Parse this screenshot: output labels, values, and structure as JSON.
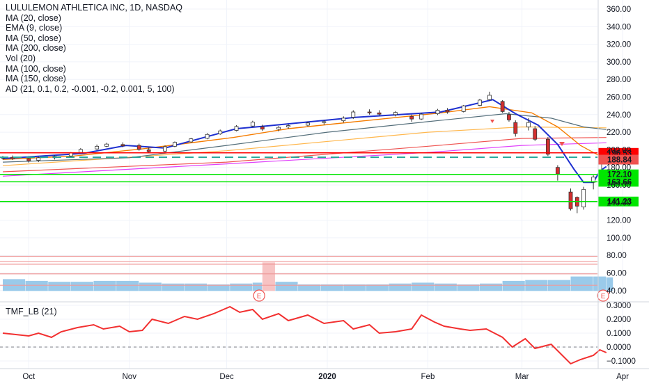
{
  "chart_data": {
    "type": "candlestick",
    "title": "LULULEMON ATHLETICA INC, 1D, NASDAQ",
    "indicators": [
      "MA (20, close)",
      "EMA (9, close)",
      "MA (50, close)",
      "MA (200, close)",
      "Vol (20)",
      "MA (100, close)",
      "MA (150, close)",
      "AD (21, 0.1, 0.2, -0.001, -0.2, 0.001, 5, 100)"
    ],
    "x_tick_labels": [
      "Oct",
      "Nov",
      "Dec",
      "2020",
      "Feb",
      "Mar",
      "Apr"
    ],
    "y_tick_labels": [
      "360.00",
      "340.00",
      "320.00",
      "300.00",
      "280.00",
      "260.00",
      "240.00",
      "220.00",
      "200.00",
      "180.00",
      "160.00",
      "140.00",
      "120.00",
      "100.00",
      "80.00",
      "60.00",
      "40.00"
    ],
    "ylim": [
      40,
      366
    ],
    "price_labels": [
      {
        "text": "196.53",
        "value": 196.53,
        "color": "#ff0000"
      },
      {
        "text": "188.84",
        "value": 188.84,
        "color": "#ef5350"
      },
      {
        "text": "172.10",
        "value": 172.1,
        "color": "#00e600"
      },
      {
        "text": "163.66",
        "value": 163.66,
        "color": "#00e600"
      },
      {
        "text": "141.23",
        "value": 141.23,
        "color": "#00e600"
      }
    ],
    "horizontal_levels": [
      {
        "value": 196.53,
        "color": "#ff0000",
        "style": "solid"
      },
      {
        "value": 191.5,
        "color": "#26a69a",
        "style": "dashed"
      },
      {
        "value": 172.1,
        "color": "#00e600",
        "style": "solid"
      },
      {
        "value": 163.66,
        "color": "#00e600",
        "style": "solid"
      },
      {
        "value": 141.23,
        "color": "#00e600",
        "style": "solid"
      }
    ],
    "oscillator_guides": [
      79.0,
      73.0,
      70.0,
      59.0,
      46.0
    ],
    "earnings_markers": [
      {
        "label": "E",
        "date": "2019-12-11"
      },
      {
        "label": "E",
        "date": "2020-03-26"
      }
    ],
    "candles": [
      {
        "d": "2019-09-23",
        "o": 190.5,
        "h": 193.0,
        "l": 189.0,
        "c": 191.5
      },
      {
        "d": "2019-09-26",
        "o": 191.5,
        "h": 193.5,
        "l": 188.5,
        "c": 190.0
      },
      {
        "d": "2019-10-01",
        "o": 190.0,
        "h": 192.5,
        "l": 185.5,
        "c": 187.5
      },
      {
        "d": "2019-10-04",
        "o": 188.0,
        "h": 192.0,
        "l": 186.0,
        "c": 191.0
      },
      {
        "d": "2019-10-09",
        "o": 191.0,
        "h": 194.0,
        "l": 189.0,
        "c": 192.5
      },
      {
        "d": "2019-10-14",
        "o": 193.0,
        "h": 197.5,
        "l": 192.0,
        "c": 196.5
      },
      {
        "d": "2019-10-17",
        "o": 197.0,
        "h": 202.0,
        "l": 196.0,
        "c": 200.5
      },
      {
        "d": "2019-10-22",
        "o": 201.0,
        "h": 206.0,
        "l": 200.0,
        "c": 204.0
      },
      {
        "d": "2019-10-25",
        "o": 204.0,
        "h": 208.0,
        "l": 203.0,
        "c": 206.5
      },
      {
        "d": "2019-10-30",
        "o": 206.0,
        "h": 208.5,
        "l": 203.0,
        "c": 204.5
      },
      {
        "d": "2019-11-04",
        "o": 205.0,
        "h": 207.0,
        "l": 199.0,
        "c": 200.5
      },
      {
        "d": "2019-11-07",
        "o": 200.0,
        "h": 202.5,
        "l": 196.0,
        "c": 198.0
      },
      {
        "d": "2019-11-12",
        "o": 198.5,
        "h": 205.0,
        "l": 197.0,
        "c": 203.5
      },
      {
        "d": "2019-11-15",
        "o": 204.0,
        "h": 209.5,
        "l": 203.0,
        "c": 208.5
      },
      {
        "d": "2019-11-20",
        "o": 209.0,
        "h": 213.5,
        "l": 208.0,
        "c": 212.5
      },
      {
        "d": "2019-11-25",
        "o": 213.0,
        "h": 219.0,
        "l": 212.0,
        "c": 217.5
      },
      {
        "d": "2019-11-29",
        "o": 218.0,
        "h": 223.0,
        "l": 217.0,
        "c": 221.5
      },
      {
        "d": "2019-12-04",
        "o": 222.0,
        "h": 228.0,
        "l": 221.0,
        "c": 226.5
      },
      {
        "d": "2019-12-09",
        "o": 227.0,
        "h": 233.0,
        "l": 226.0,
        "c": 231.5
      },
      {
        "d": "2019-12-12",
        "o": 226.0,
        "h": 228.5,
        "l": 221.5,
        "c": 223.5
      },
      {
        "d": "2019-12-17",
        "o": 223.5,
        "h": 227.0,
        "l": 221.0,
        "c": 225.5
      },
      {
        "d": "2019-12-20",
        "o": 226.0,
        "h": 229.0,
        "l": 224.0,
        "c": 227.5
      },
      {
        "d": "2019-12-26",
        "o": 228.0,
        "h": 232.0,
        "l": 226.5,
        "c": 230.5
      },
      {
        "d": "2019-12-31",
        "o": 231.0,
        "h": 234.0,
        "l": 228.5,
        "c": 232.0
      },
      {
        "d": "2020-01-06",
        "o": 233.0,
        "h": 238.0,
        "l": 231.0,
        "c": 236.0
      },
      {
        "d": "2020-01-09",
        "o": 237.0,
        "h": 245.0,
        "l": 235.0,
        "c": 243.0
      },
      {
        "d": "2020-01-14",
        "o": 243.0,
        "h": 246.0,
        "l": 240.0,
        "c": 242.0
      },
      {
        "d": "2020-01-17",
        "o": 242.0,
        "h": 245.0,
        "l": 239.0,
        "c": 240.5
      },
      {
        "d": "2020-01-22",
        "o": 240.0,
        "h": 244.0,
        "l": 238.0,
        "c": 242.5
      },
      {
        "d": "2020-01-27",
        "o": 238.0,
        "h": 240.0,
        "l": 232.0,
        "c": 235.0
      },
      {
        "d": "2020-01-30",
        "o": 235.0,
        "h": 242.0,
        "l": 234.0,
        "c": 240.5
      },
      {
        "d": "2020-02-04",
        "o": 241.0,
        "h": 246.5,
        "l": 239.5,
        "c": 245.0
      },
      {
        "d": "2020-02-07",
        "o": 245.0,
        "h": 247.5,
        "l": 241.0,
        "c": 243.0
      },
      {
        "d": "2020-02-12",
        "o": 243.5,
        "h": 251.0,
        "l": 242.5,
        "c": 250.0
      },
      {
        "d": "2020-02-17",
        "o": 250.5,
        "h": 258.0,
        "l": 249.5,
        "c": 256.5
      },
      {
        "d": "2020-02-20",
        "o": 257.0,
        "h": 266.0,
        "l": 255.5,
        "c": 262.0
      },
      {
        "d": "2020-02-24",
        "o": 255.0,
        "h": 256.5,
        "l": 242.0,
        "c": 243.5
      },
      {
        "d": "2020-02-26",
        "o": 240.0,
        "h": 243.0,
        "l": 232.0,
        "c": 234.0
      },
      {
        "d": "2020-02-28",
        "o": 231.0,
        "h": 233.5,
        "l": 215.0,
        "c": 218.5
      },
      {
        "d": "2020-03-03",
        "o": 226.0,
        "h": 236.0,
        "l": 222.0,
        "c": 231.0
      },
      {
        "d": "2020-03-05",
        "o": 224.0,
        "h": 227.0,
        "l": 210.0,
        "c": 212.0
      },
      {
        "d": "2020-03-09",
        "o": 212.0,
        "h": 214.5,
        "l": 193.0,
        "c": 195.0
      },
      {
        "d": "2020-03-12",
        "o": 180.0,
        "h": 182.5,
        "l": 165.0,
        "c": 172.5
      },
      {
        "d": "2020-03-16",
        "o": 152.0,
        "h": 156.0,
        "l": 131.0,
        "c": 133.0
      },
      {
        "d": "2020-03-18",
        "o": 146.0,
        "h": 147.0,
        "l": 128.0,
        "c": 136.0
      },
      {
        "d": "2020-03-20",
        "o": 135.0,
        "h": 158.0,
        "l": 132.0,
        "c": 155.0
      },
      {
        "d": "2020-03-23",
        "o": 163.0,
        "h": 171.0,
        "l": 155.0,
        "c": 169.0
      },
      {
        "d": "2020-03-25",
        "o": 176.0,
        "h": 196.5,
        "l": 174.0,
        "c": 194.5
      },
      {
        "d": "2020-03-27",
        "o": 196.0,
        "h": 202.0,
        "l": 186.0,
        "c": 188.84
      }
    ],
    "ma20": [
      [
        "2019-09-23",
        189
      ],
      [
        "2019-10-15",
        193
      ],
      [
        "2019-11-05",
        201
      ],
      [
        "2019-12-03",
        214
      ],
      [
        "2019-12-20",
        224
      ],
      [
        "2020-01-15",
        234
      ],
      [
        "2020-02-05",
        242
      ],
      [
        "2020-02-20",
        249
      ],
      [
        "2020-03-04",
        242
      ],
      [
        "2020-03-12",
        226
      ],
      [
        "2020-03-19",
        205
      ],
      [
        "2020-03-25",
        193
      ],
      [
        "2020-03-27",
        188
      ]
    ],
    "ema9": [
      [
        "2019-09-23",
        190
      ],
      [
        "2019-10-18",
        196
      ],
      [
        "2019-10-31",
        205
      ],
      [
        "2019-11-12",
        202
      ],
      [
        "2019-12-04",
        224
      ],
      [
        "2019-12-13",
        227
      ],
      [
        "2020-01-10",
        237
      ],
      [
        "2020-02-05",
        243
      ],
      [
        "2020-02-21",
        257
      ],
      [
        "2020-02-28",
        241
      ],
      [
        "2020-03-06",
        228
      ],
      [
        "2020-03-12",
        206
      ],
      [
        "2020-03-17",
        178
      ],
      [
        "2020-03-20",
        163
      ],
      [
        "2020-03-23",
        163
      ],
      [
        "2020-03-25",
        176
      ],
      [
        "2020-03-27",
        181
      ]
    ],
    "ma50": [
      [
        "2019-09-23",
        186
      ],
      [
        "2019-11-01",
        191
      ],
      [
        "2019-12-01",
        205
      ],
      [
        "2020-01-01",
        220
      ],
      [
        "2020-02-01",
        232
      ],
      [
        "2020-02-25",
        241
      ],
      [
        "2020-03-10",
        236
      ],
      [
        "2020-03-20",
        226
      ],
      [
        "2020-03-27",
        223
      ]
    ],
    "ma200": [
      [
        "2019-09-23",
        175
      ],
      [
        "2019-12-01",
        186
      ],
      [
        "2020-02-01",
        204
      ],
      [
        "2020-03-01",
        213
      ],
      [
        "2020-03-27",
        214
      ]
    ],
    "ma100": [
      [
        "2019-09-23",
        182
      ],
      [
        "2019-12-01",
        199
      ],
      [
        "2020-02-01",
        220
      ],
      [
        "2020-03-01",
        226
      ],
      [
        "2020-03-27",
        225
      ]
    ],
    "ma150": [
      [
        "2019-09-23",
        170
      ],
      [
        "2019-12-01",
        184
      ],
      [
        "2020-02-01",
        197
      ],
      [
        "2020-03-01",
        205
      ],
      [
        "2020-03-27",
        208
      ]
    ],
    "volume": [
      [
        "2019-09-23",
        53
      ],
      [
        "2019-09-30",
        51
      ],
      [
        "2019-10-07",
        50
      ],
      [
        "2019-10-14",
        50
      ],
      [
        "2019-10-21",
        51
      ],
      [
        "2019-10-28",
        51
      ],
      [
        "2019-11-04",
        49
      ],
      [
        "2019-11-11",
        48
      ],
      [
        "2019-11-18",
        48
      ],
      [
        "2019-11-25",
        47
      ],
      [
        "2019-12-02",
        48
      ],
      [
        "2019-12-09",
        49
      ],
      [
        "2019-12-12",
        72
      ],
      [
        "2019-12-16",
        50
      ],
      [
        "2019-12-23",
        47
      ],
      [
        "2019-12-30",
        47
      ],
      [
        "2020-01-06",
        47
      ],
      [
        "2020-01-13",
        47
      ],
      [
        "2020-01-20",
        48
      ],
      [
        "2020-01-27",
        49
      ],
      [
        "2020-02-03",
        48
      ],
      [
        "2020-02-10",
        47
      ],
      [
        "2020-02-17",
        48
      ],
      [
        "2020-02-24",
        51
      ],
      [
        "2020-03-02",
        52
      ],
      [
        "2020-03-09",
        52
      ],
      [
        "2020-03-16",
        56
      ],
      [
        "2020-03-23",
        56
      ],
      [
        "2020-03-27",
        55
      ]
    ],
    "oscillator_label": "TMF_LB (21)",
    "oscillator_ticks": [
      "0.3000",
      "0.2000",
      "0.1000",
      "0.0000",
      "−0.1000"
    ],
    "oscillator_ylim": [
      -0.15,
      0.32
    ],
    "oscillator": [
      [
        "2019-09-23",
        0.1
      ],
      [
        "2019-09-27",
        0.09
      ],
      [
        "2019-10-01",
        0.08
      ],
      [
        "2019-10-04",
        0.1
      ],
      [
        "2019-10-08",
        0.07
      ],
      [
        "2019-10-11",
        0.11
      ],
      [
        "2019-10-16",
        0.14
      ],
      [
        "2019-10-21",
        0.16
      ],
      [
        "2019-10-24",
        0.13
      ],
      [
        "2019-10-29",
        0.15
      ],
      [
        "2019-11-01",
        0.11
      ],
      [
        "2019-11-05",
        0.12
      ],
      [
        "2019-11-08",
        0.2
      ],
      [
        "2019-11-13",
        0.17
      ],
      [
        "2019-11-18",
        0.22
      ],
      [
        "2019-11-22",
        0.2
      ],
      [
        "2019-11-27",
        0.24
      ],
      [
        "2019-12-02",
        0.29
      ],
      [
        "2019-12-05",
        0.25
      ],
      [
        "2019-12-09",
        0.27
      ],
      [
        "2019-12-12",
        0.2
      ],
      [
        "2019-12-17",
        0.24
      ],
      [
        "2019-12-20",
        0.19
      ],
      [
        "2019-12-26",
        0.23
      ],
      [
        "2019-12-31",
        0.17
      ],
      [
        "2020-01-06",
        0.19
      ],
      [
        "2020-01-09",
        0.13
      ],
      [
        "2020-01-14",
        0.16
      ],
      [
        "2020-01-17",
        0.1
      ],
      [
        "2020-01-22",
        0.11
      ],
      [
        "2020-01-27",
        0.13
      ],
      [
        "2020-01-30",
        0.23
      ],
      [
        "2020-02-03",
        0.18
      ],
      [
        "2020-02-06",
        0.15
      ],
      [
        "2020-02-11",
        0.13
      ],
      [
        "2020-02-14",
        0.12
      ],
      [
        "2020-02-19",
        0.13
      ],
      [
        "2020-02-24",
        0.07
      ],
      [
        "2020-02-27",
        0.0
      ],
      [
        "2020-03-02",
        0.06
      ],
      [
        "2020-03-05",
        -0.01
      ],
      [
        "2020-03-10",
        0.02
      ],
      [
        "2020-03-13",
        -0.05
      ],
      [
        "2020-03-16",
        -0.12
      ],
      [
        "2020-03-19",
        -0.09
      ],
      [
        "2020-03-23",
        -0.06
      ],
      [
        "2020-03-25",
        -0.02
      ],
      [
        "2020-03-27",
        -0.04
      ]
    ]
  }
}
